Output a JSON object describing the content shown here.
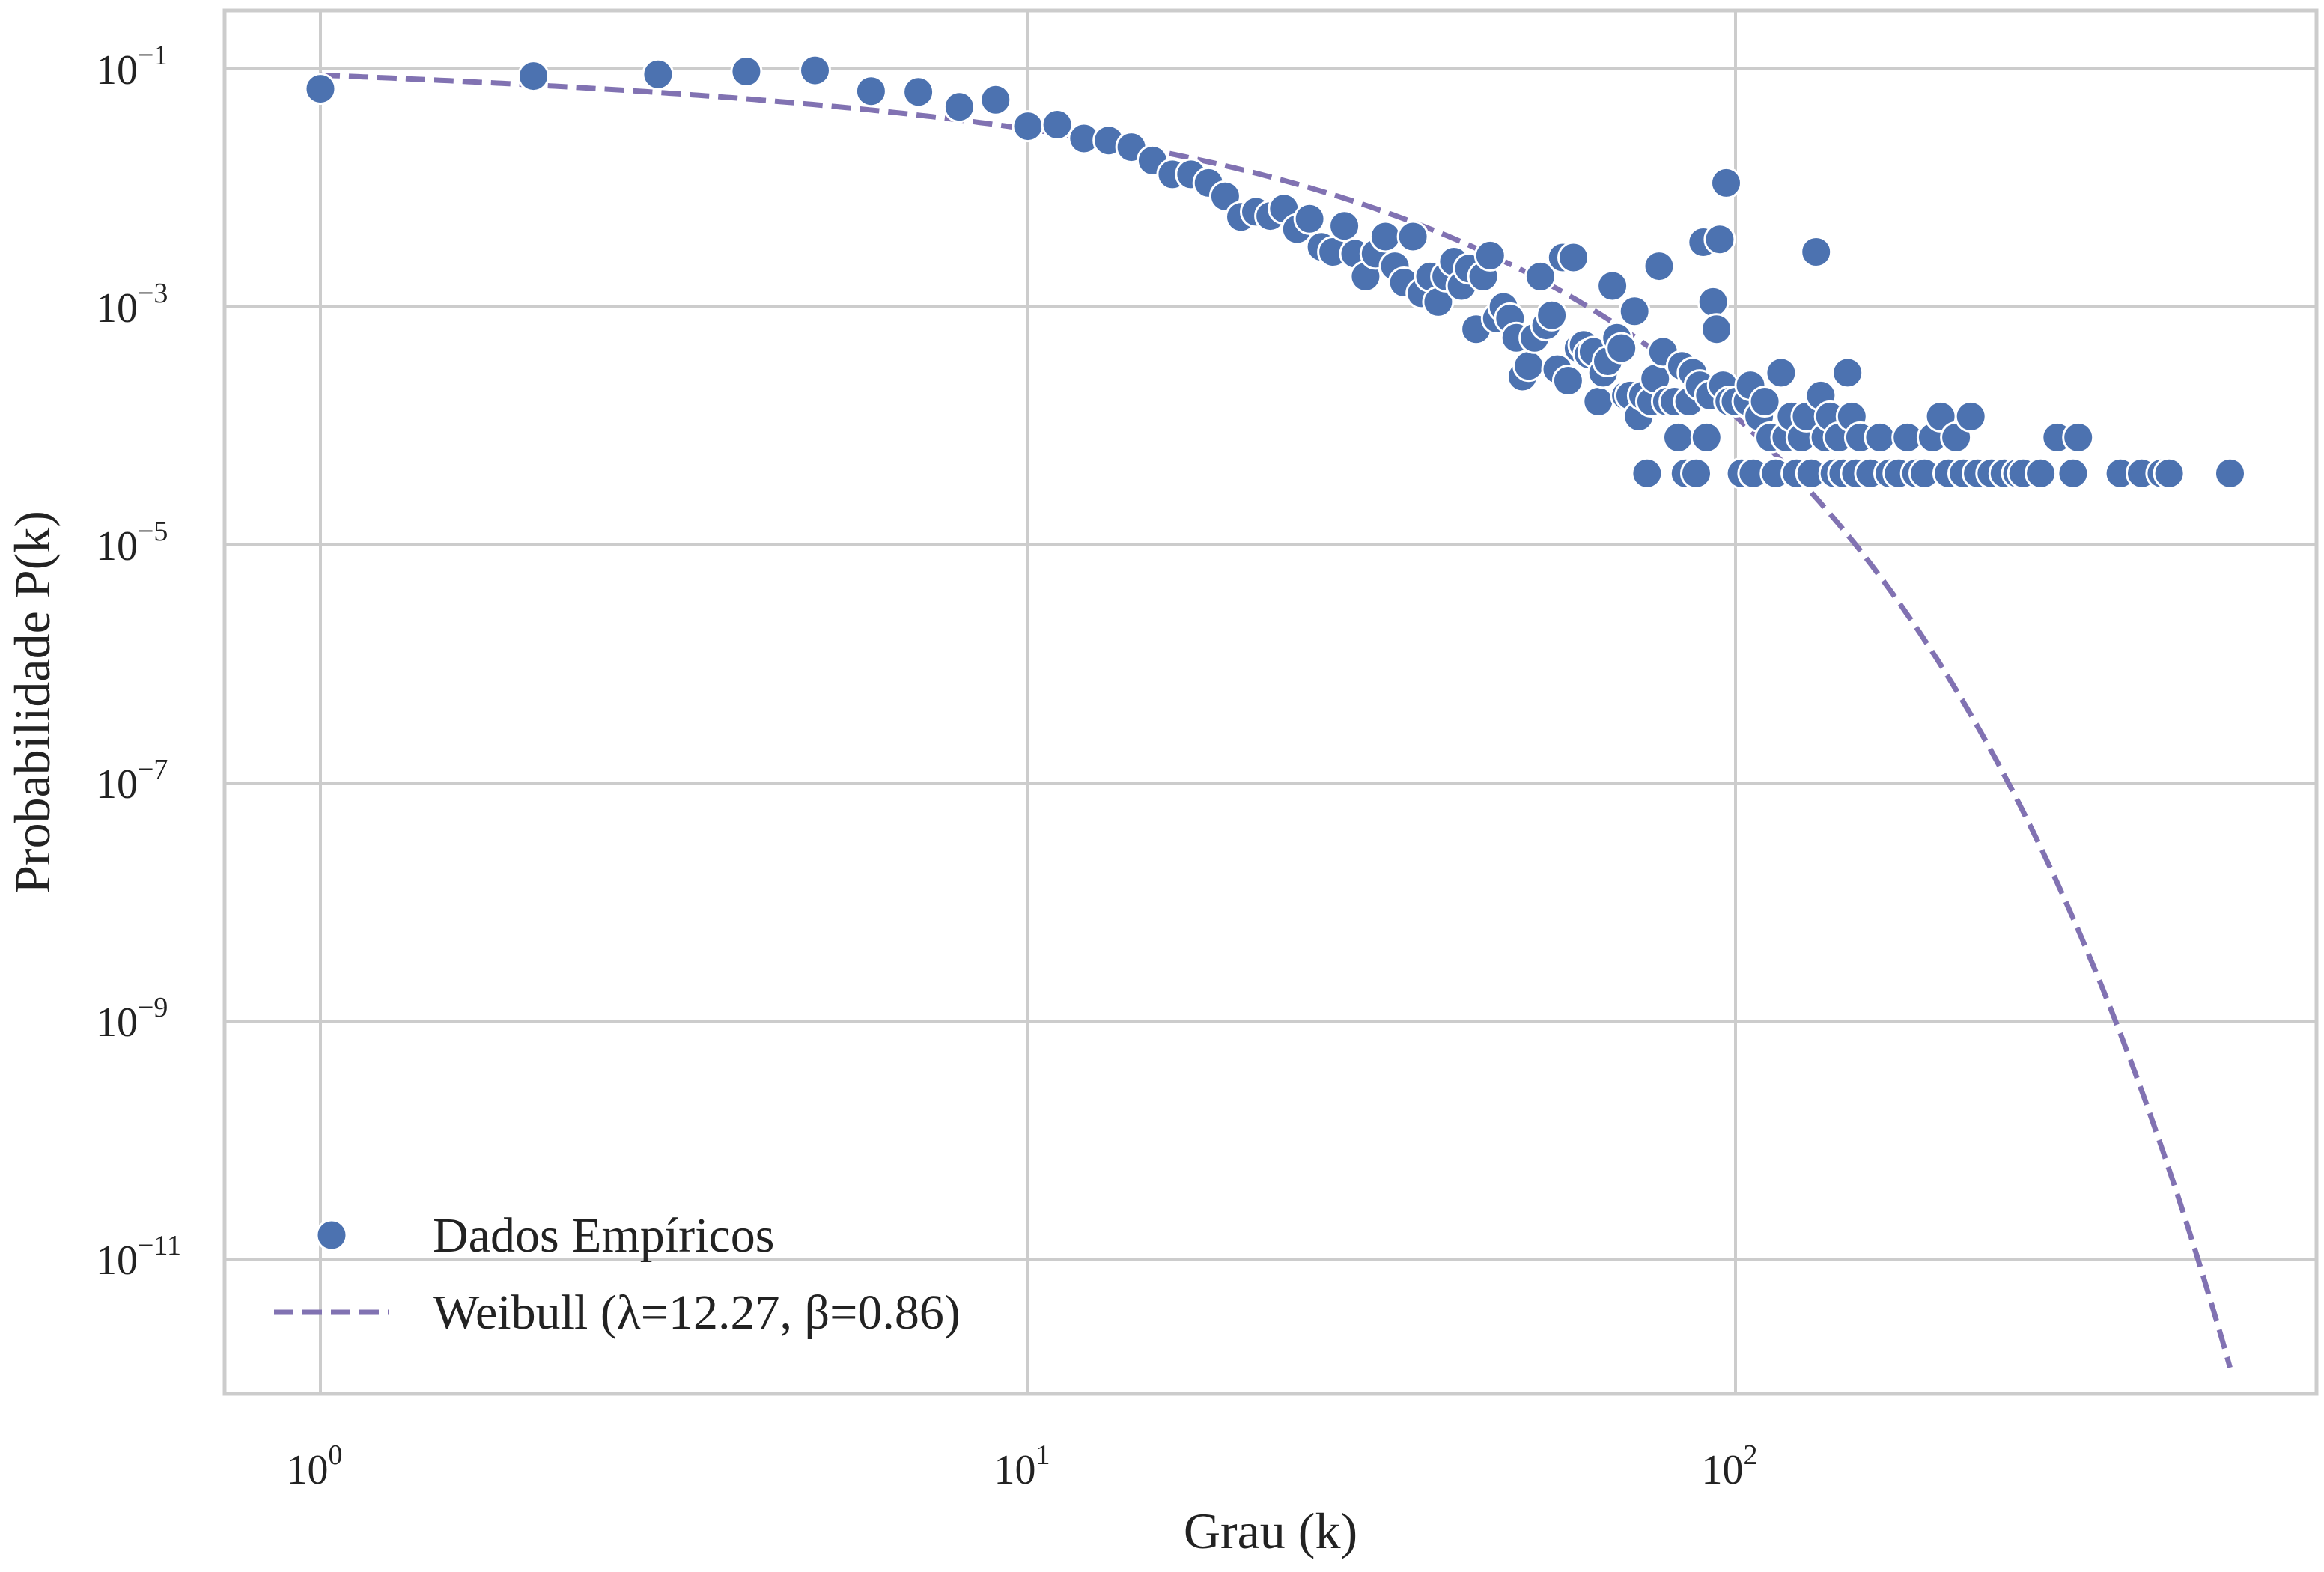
{
  "chart_data": {
    "type": "scatter",
    "xlabel": "Grau (k)",
    "ylabel": "Probabilidade P(k)",
    "xscale": "log",
    "yscale": "log",
    "xlim": [
      0.7,
      1000
    ],
    "ylim": [
      5e-13,
      0.3
    ],
    "grid": true,
    "legend_position": "lower-left",
    "x_ticks": [
      {
        "base": "10",
        "exp": "0",
        "value": 1
      },
      {
        "base": "10",
        "exp": "1",
        "value": 10
      },
      {
        "base": "10",
        "exp": "2",
        "value": 100
      }
    ],
    "y_ticks": [
      {
        "base": "10",
        "exp": "−1",
        "value": 0.1
      },
      {
        "base": "10",
        "exp": "−3",
        "value": 0.001
      },
      {
        "base": "10",
        "exp": "−5",
        "value": 1e-05
      },
      {
        "base": "10",
        "exp": "−7",
        "value": 1e-07
      },
      {
        "base": "10",
        "exp": "−9",
        "value": 1e-09
      },
      {
        "base": "10",
        "exp": "−11",
        "value": 1e-11
      }
    ],
    "colors": {
      "scatter": "#4C72B0",
      "fit": "#8172B2",
      "grid": "#CCCCCC",
      "frame": "#CCCCCC"
    },
    "series": [
      {
        "name": "Dados Empíricos",
        "kind": "scatter",
        "points": [
          [
            1,
            0.068
          ],
          [
            2,
            0.087
          ],
          [
            3,
            0.09
          ],
          [
            4,
            0.095
          ],
          [
            5,
            0.097
          ],
          [
            6,
            0.065
          ],
          [
            7,
            0.064
          ],
          [
            8,
            0.048
          ],
          [
            9,
            0.055
          ],
          [
            10,
            0.033
          ],
          [
            11,
            0.034
          ],
          [
            12,
            0.026
          ],
          [
            13,
            0.025
          ],
          [
            14,
            0.022
          ],
          [
            15,
            0.017
          ],
          [
            16,
            0.013
          ],
          [
            17,
            0.013
          ],
          [
            18,
            0.011
          ],
          [
            19,
            0.0085
          ],
          [
            20,
            0.0057
          ],
          [
            21,
            0.0063
          ],
          [
            22,
            0.0058
          ],
          [
            23,
            0.0067
          ],
          [
            24,
            0.0045
          ],
          [
            25,
            0.0055
          ],
          [
            26,
            0.0032
          ],
          [
            27,
            0.0029
          ],
          [
            28,
            0.0048
          ],
          [
            29,
            0.0028
          ],
          [
            30,
            0.0018
          ],
          [
            31,
            0.0028
          ],
          [
            32,
            0.0039
          ],
          [
            33,
            0.0022
          ],
          [
            34,
            0.0016
          ],
          [
            35,
            0.0039
          ],
          [
            36,
            0.0013
          ],
          [
            37,
            0.0018
          ],
          [
            38,
            0.0011
          ],
          [
            39,
            0.0018
          ],
          [
            40,
            0.0024
          ],
          [
            41,
            0.0015
          ],
          [
            42,
            0.0021
          ],
          [
            43,
            0.00065
          ],
          [
            44,
            0.0018
          ],
          [
            45,
            0.0027
          ],
          [
            46,
            0.0008
          ],
          [
            47,
            0.001
          ],
          [
            48,
            0.0008
          ],
          [
            49,
            0.00055
          ],
          [
            50,
            0.00026
          ],
          [
            51,
            0.00032
          ],
          [
            52,
            0.00055
          ],
          [
            53,
            0.0018
          ],
          [
            54,
            0.0007
          ],
          [
            55,
            0.00085
          ],
          [
            56,
            0.0003
          ],
          [
            57,
            0.0026
          ],
          [
            58,
            0.00024
          ],
          [
            59,
            0.0026
          ],
          [
            60,
            0.00045
          ],
          [
            61,
            0.00048
          ],
          [
            62,
            0.0004
          ],
          [
            63,
            0.00042
          ],
          [
            64,
            0.00016
          ],
          [
            65,
            0.00028
          ],
          [
            66,
            0.00035
          ],
          [
            67,
            0.0015
          ],
          [
            68,
            0.00055
          ],
          [
            69,
            0.00045
          ],
          [
            70,
            0.00018
          ],
          [
            71,
            0.00018
          ],
          [
            72,
            0.00092
          ],
          [
            73,
            0.00012
          ],
          [
            74,
            0.00018
          ],
          [
            75,
            4e-05
          ],
          [
            76,
            0.00016
          ],
          [
            77,
            0.00025
          ],
          [
            78,
            0.0022
          ],
          [
            79,
            0.00042
          ],
          [
            80,
            0.00016
          ],
          [
            82,
            0.00016
          ],
          [
            83,
            8e-05
          ],
          [
            84,
            0.00032
          ],
          [
            85,
            4e-05
          ],
          [
            86,
            0.00016
          ],
          [
            87,
            0.00028
          ],
          [
            88,
            4e-05
          ],
          [
            89,
            0.00022
          ],
          [
            90,
            0.0035
          ],
          [
            91,
            8e-05
          ],
          [
            92,
            0.00018
          ],
          [
            93,
            0.0011
          ],
          [
            94,
            0.00065
          ],
          [
            95,
            0.0037
          ],
          [
            96,
            0.00022
          ],
          [
            97,
            0.011
          ],
          [
            98,
            0.00016
          ],
          [
            100,
            0.00016
          ],
          [
            102,
            4e-05
          ],
          [
            104,
            0.00016
          ],
          [
            105,
            0.00022
          ],
          [
            106,
            4e-05
          ],
          [
            108,
            0.00012
          ],
          [
            110,
            0.00016
          ],
          [
            112,
            8e-05
          ],
          [
            114,
            4e-05
          ],
          [
            116,
            0.00028
          ],
          [
            118,
            8e-05
          ],
          [
            120,
            0.00012
          ],
          [
            122,
            4e-05
          ],
          [
            124,
            8e-05
          ],
          [
            126,
            0.00012
          ],
          [
            128,
            4e-05
          ],
          [
            130,
            0.0029
          ],
          [
            132,
            0.00018
          ],
          [
            134,
            8e-05
          ],
          [
            136,
            0.00012
          ],
          [
            138,
            4e-05
          ],
          [
            140,
            8e-05
          ],
          [
            142,
            4e-05
          ],
          [
            144,
            0.00028
          ],
          [
            146,
            0.00012
          ],
          [
            148,
            4e-05
          ],
          [
            150,
            8e-05
          ],
          [
            155,
            4e-05
          ],
          [
            160,
            8e-05
          ],
          [
            165,
            4e-05
          ],
          [
            170,
            4e-05
          ],
          [
            175,
            8e-05
          ],
          [
            180,
            4e-05
          ],
          [
            185,
            4e-05
          ],
          [
            190,
            8e-05
          ],
          [
            195,
            0.00012
          ],
          [
            200,
            4e-05
          ],
          [
            205,
            8e-05
          ],
          [
            210,
            4e-05
          ],
          [
            215,
            0.00012
          ],
          [
            220,
            4e-05
          ],
          [
            230,
            4e-05
          ],
          [
            240,
            4e-05
          ],
          [
            250,
            4e-05
          ],
          [
            255,
            4e-05
          ],
          [
            270,
            4e-05
          ],
          [
            285,
            8e-05
          ],
          [
            300,
            4e-05
          ],
          [
            305,
            8e-05
          ],
          [
            350,
            4e-05
          ],
          [
            375,
            4e-05
          ],
          [
            400,
            4e-05
          ],
          [
            410,
            4e-05
          ],
          [
            500,
            4e-05
          ]
        ]
      },
      {
        "name": "Weibull (λ=12.27, β=0.86)",
        "kind": "line",
        "dash": true,
        "lambda": 12.27,
        "beta": 0.86,
        "x_range": [
          1,
          500
        ]
      }
    ]
  }
}
